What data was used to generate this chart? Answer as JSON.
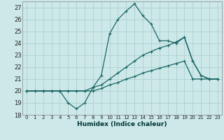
{
  "xlabel": "Humidex (Indice chaleur)",
  "background_color": "#cce8e8",
  "grid_color": "#b0d0d0",
  "line_color": "#1a6666",
  "xlim": [
    -0.5,
    23.5
  ],
  "ylim": [
    18,
    27.5
  ],
  "yticks": [
    18,
    19,
    20,
    21,
    22,
    23,
    24,
    25,
    26,
    27
  ],
  "xticks": [
    0,
    1,
    2,
    3,
    4,
    5,
    6,
    7,
    8,
    9,
    10,
    11,
    12,
    13,
    14,
    15,
    16,
    17,
    18,
    19,
    20,
    21,
    22,
    23
  ],
  "series1_x": [
    0,
    1,
    2,
    3,
    4,
    5,
    6,
    7,
    8,
    9,
    10,
    11,
    12,
    13,
    14,
    15,
    16,
    17,
    18,
    19,
    20,
    21,
    22,
    23
  ],
  "series1_y": [
    20,
    20,
    20,
    20,
    20,
    19,
    18.5,
    19,
    20.3,
    21.3,
    24.8,
    26.0,
    26.7,
    27.3,
    26.3,
    25.6,
    24.2,
    24.2,
    24.0,
    24.5,
    22.5,
    21.3,
    21.0,
    21.0
  ],
  "series2_x": [
    0,
    2,
    3,
    4,
    5,
    6,
    7,
    8,
    9,
    10,
    11,
    12,
    13,
    14,
    15,
    16,
    17,
    18,
    19,
    20,
    21,
    22,
    23
  ],
  "series2_y": [
    20,
    20,
    20,
    20,
    20,
    20,
    20,
    20.3,
    20.5,
    21.0,
    21.5,
    22.0,
    22.5,
    23.0,
    23.3,
    23.6,
    23.8,
    24.1,
    24.5,
    22.5,
    21.3,
    21.0,
    21.0
  ],
  "series3_x": [
    0,
    1,
    2,
    3,
    4,
    5,
    6,
    7,
    8,
    9,
    10,
    11,
    12,
    13,
    14,
    15,
    16,
    17,
    18,
    19,
    20,
    21,
    22,
    23
  ],
  "series3_y": [
    20,
    20,
    20,
    20,
    20,
    20,
    20,
    20,
    20.0,
    20.2,
    20.5,
    20.7,
    21.0,
    21.2,
    21.5,
    21.7,
    21.9,
    22.1,
    22.3,
    22.5,
    21.0,
    21.0,
    21.0,
    21.0
  ]
}
